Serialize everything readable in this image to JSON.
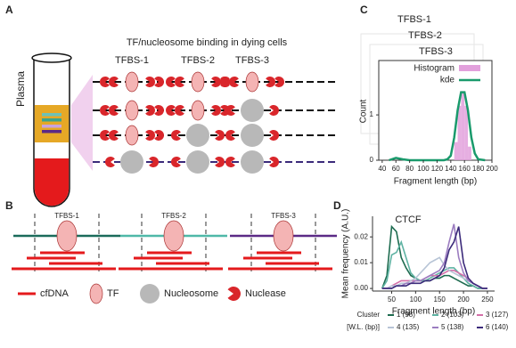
{
  "panel_labels": [
    "A",
    "B",
    "C",
    "D"
  ],
  "panel_a": {
    "tube_label": "Plasma",
    "title": "TF/nucleosome binding in dying cells",
    "sites": [
      "TFBS-1",
      "TFBS-2",
      "TFBS-3"
    ]
  },
  "panel_b": {
    "sites": [
      "TFBS-1",
      "TFBS-2",
      "TFBS-3"
    ],
    "legend": [
      "cfDNA",
      "TF",
      "Nucleosome",
      "Nuclease"
    ]
  },
  "chart_data": [
    {
      "type": "histogram",
      "titles": [
        "TFBS-1",
        "TFBS-2",
        "TFBS-3"
      ],
      "xlabel": "Fragment length (bp)",
      "ylabel": "Count",
      "histogram": {
        "name": "Histogram",
        "color": "#e2a0dc",
        "bins": [
          145,
          150,
          155,
          160,
          165,
          170
        ],
        "counts": [
          0.4,
          1.2,
          1.5,
          1.2,
          0.3
        ]
      },
      "kde": {
        "name": "kde",
        "color": "#1a9a6c",
        "x": [
          50,
          60,
          70,
          80,
          90,
          100,
          110,
          120,
          130,
          135,
          140,
          145,
          150,
          155,
          160,
          165,
          170,
          175,
          180,
          190
        ],
        "values": [
          0,
          0.05,
          0.02,
          0,
          0,
          0,
          0,
          0,
          0,
          0.02,
          0.1,
          0.5,
          1.1,
          1.5,
          1.5,
          1.1,
          0.5,
          0.15,
          0.02,
          0
        ]
      },
      "xlim": [
        35,
        200
      ],
      "xticks": [
        40,
        60,
        80,
        100,
        120,
        140,
        160,
        180,
        200
      ],
      "ylim": [
        0,
        2.2
      ],
      "yticks": [
        0,
        1
      ]
    },
    {
      "type": "line",
      "title": "CTCF",
      "xlabel": "Fragment length (bp)",
      "ylabel": "Mean frequency (A.U.)",
      "legend_title": [
        "Cluster",
        "[W.L. (bp)]"
      ],
      "x": [
        30,
        40,
        50,
        60,
        70,
        80,
        90,
        100,
        110,
        120,
        130,
        140,
        150,
        160,
        170,
        180,
        190,
        200,
        210,
        220,
        230,
        240,
        250
      ],
      "series": [
        {
          "name": "1 (98)",
          "color": "#1d6b4f",
          "values": [
            0,
            0.005,
            0.024,
            0.022,
            0.012,
            0.008,
            0.005,
            0.004,
            0.003,
            0.003,
            0.003,
            0.004,
            0.004,
            0.005,
            0.005,
            0.004,
            0.003,
            0.002,
            0.001,
            0.001,
            0,
            0,
            0
          ]
        },
        {
          "name": "2 (103)",
          "color": "#5fb3a3",
          "values": [
            0,
            0.003,
            0.013,
            0.014,
            0.018,
            0.012,
            0.006,
            0.004,
            0.003,
            0.003,
            0.004,
            0.005,
            0.006,
            0.007,
            0.008,
            0.008,
            0.006,
            0.004,
            0.002,
            0.001,
            0,
            0,
            0
          ]
        },
        {
          "name": "3 (127)",
          "color": "#d46fa8",
          "values": [
            0,
            0,
            0.001,
            0.002,
            0.003,
            0.003,
            0.003,
            0.003,
            0.003,
            0.004,
            0.005,
            0.005,
            0.005,
            0.006,
            0.007,
            0.007,
            0.006,
            0.005,
            0.004,
            0.002,
            0.001,
            0,
            0
          ]
        },
        {
          "name": "4 (135)",
          "color": "#b7c4d6",
          "values": [
            0,
            0,
            0.001,
            0.001,
            0.002,
            0.002,
            0.003,
            0.004,
            0.006,
            0.008,
            0.01,
            0.011,
            0.012,
            0.009,
            0.007,
            0.006,
            0.005,
            0.004,
            0.003,
            0.002,
            0.001,
            0,
            0
          ]
        },
        {
          "name": "5 (138)",
          "color": "#9b7cc0",
          "values": [
            0,
            0,
            0,
            0.001,
            0.001,
            0.002,
            0.002,
            0.003,
            0.003,
            0.004,
            0.005,
            0.006,
            0.007,
            0.01,
            0.018,
            0.025,
            0.012,
            0.006,
            0.003,
            0.002,
            0.001,
            0,
            0
          ]
        },
        {
          "name": "6 (140)",
          "color": "#3b2a7a",
          "values": [
            0,
            0,
            0,
            0.001,
            0.001,
            0.001,
            0.002,
            0.002,
            0.002,
            0.003,
            0.003,
            0.004,
            0.005,
            0.008,
            0.015,
            0.018,
            0.024,
            0.01,
            0.004,
            0.002,
            0.001,
            0,
            0
          ]
        }
      ],
      "xlim": [
        10,
        265
      ],
      "xticks": [
        50,
        100,
        150,
        200,
        250
      ],
      "ylim": [
        -0.001,
        0.028
      ],
      "yticks": [
        {
          "value": 0,
          "label": "0.00"
        },
        {
          "value": 0.01,
          "label": "0.01"
        },
        {
          "value": 0.02,
          "label": "0.02"
        }
      ]
    }
  ]
}
